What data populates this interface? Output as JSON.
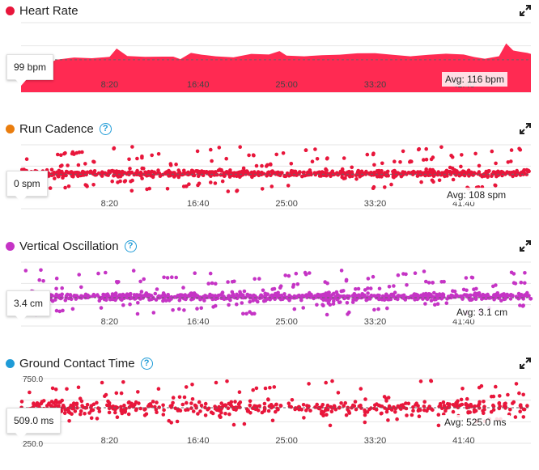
{
  "panels": [
    {
      "title": "Heart Rate",
      "dot_color": "#e8163b",
      "help": false,
      "current": "99 bpm",
      "avg": "Avg: 116 bpm"
    },
    {
      "title": "Run Cadence",
      "dot_color": "#ea7d0e",
      "help": true,
      "current": "0 spm",
      "avg": "Avg: 108 spm"
    },
    {
      "title": "Vertical Oscillation",
      "dot_color": "#c534c5",
      "help": true,
      "current": "3.4 cm",
      "avg": "Avg: 3.1 cm"
    },
    {
      "title": "Ground Contact Time",
      "dot_color": "#1e9bd7",
      "help": true,
      "current": "509.0 ms",
      "avg": "Avg: 525.0 ms"
    }
  ],
  "chart_data": [
    {
      "type": "area",
      "title": "Heart Rate",
      "x_ticks": [
        "8:20",
        "16:40",
        "25:00",
        "33:20",
        "41:40"
      ],
      "x_tick_seconds": [
        500,
        1000,
        1500,
        2000,
        2500
      ],
      "xlim": [
        0,
        2880
      ],
      "ylim": [
        60,
        180
      ],
      "y_ticks": [],
      "average": 116,
      "color": "#ff2a52",
      "x": [
        0,
        80,
        200,
        300,
        400,
        500,
        540,
        600,
        700,
        800,
        860,
        900,
        960,
        1020,
        1100,
        1200,
        1300,
        1400,
        1460,
        1500,
        1600,
        1700,
        1800,
        1900,
        2000,
        2100,
        2200,
        2300,
        2400,
        2500,
        2560,
        2620,
        2700,
        2740,
        2780,
        2820,
        2860,
        2880
      ],
      "values": [
        95,
        100,
        118,
        120,
        117,
        119,
        135,
        124,
        123,
        122,
        120,
        115,
        127,
        126,
        124,
        121,
        125,
        123,
        130,
        124,
        124,
        125,
        124,
        125,
        126,
        125,
        124,
        126,
        126,
        123,
        119,
        118,
        124,
        146,
        132,
        128,
        126,
        126
      ]
    },
    {
      "type": "scatter",
      "title": "Run Cadence",
      "x_ticks": [
        "8:20",
        "16:40",
        "25:00",
        "33:20",
        "41:40"
      ],
      "x_tick_seconds": [
        500,
        1000,
        1500,
        2000,
        2500
      ],
      "xlim": [
        0,
        2880
      ],
      "ylim": [
        0,
        200
      ],
      "y_ticks": [],
      "average": 108,
      "color": "#e8163b",
      "points": 900,
      "center": 110,
      "spread": 8
    },
    {
      "type": "scatter",
      "title": "Vertical Oscillation",
      "x_ticks": [
        "8:20",
        "16:40",
        "25:00",
        "33:20",
        "41:40"
      ],
      "x_tick_seconds": [
        500,
        1000,
        1500,
        2000,
        2500
      ],
      "xlim": [
        0,
        2880
      ],
      "ylim": [
        0,
        7
      ],
      "y_ticks": [],
      "average": 3.1,
      "color": "#c534c5",
      "points": 900,
      "center": 3.2,
      "spread": 0.3
    },
    {
      "type": "scatter",
      "title": "Ground Contact Time",
      "x_ticks": [
        "8:20",
        "16:40",
        "25:00",
        "33:20",
        "41:40"
      ],
      "x_tick_seconds": [
        500,
        1000,
        1500,
        2000,
        2500
      ],
      "xlim": [
        0,
        2880
      ],
      "ylim": [
        250,
        750
      ],
      "y_ticks": [
        "750.0",
        "250.0"
      ],
      "y_tick_values": [
        750,
        250
      ],
      "average": 525,
      "color": "#e8163b",
      "points": 520,
      "center": 525,
      "spread": 40
    }
  ]
}
